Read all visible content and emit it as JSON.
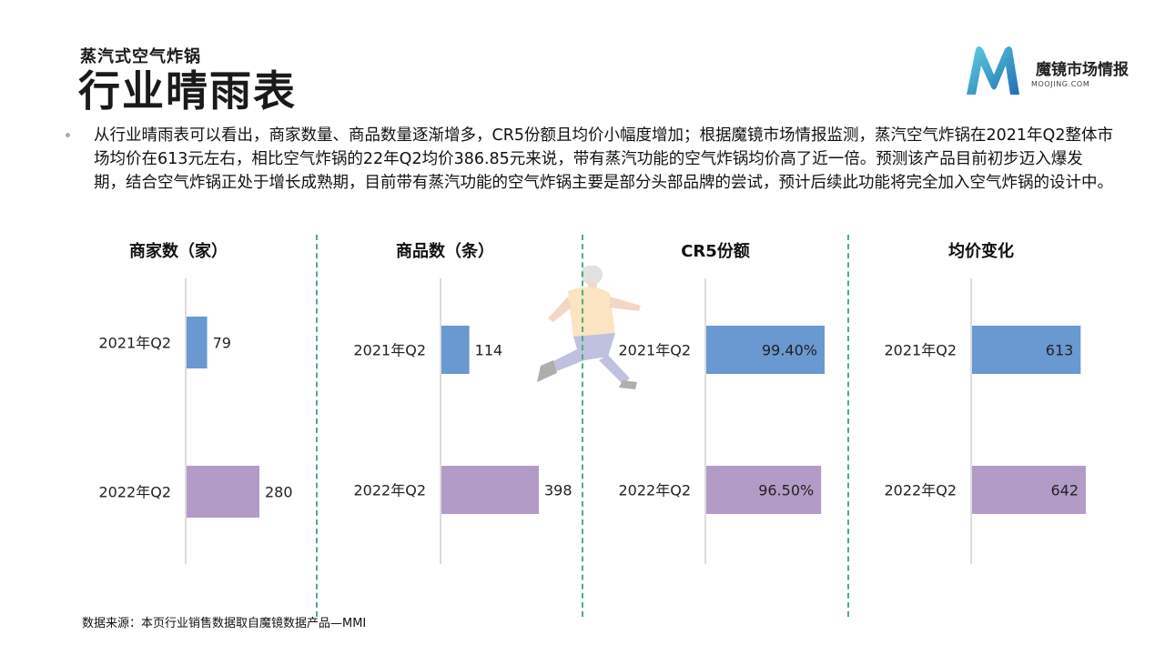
{
  "header": {
    "subtitle": "蒸汽式空气炸锅",
    "title": "行业晴雨表",
    "logo_text": "魔镜市场情报",
    "logo_domain": "MOOJING.COM"
  },
  "body_text": "从行业晴雨表可以看出，商家数量、商品数量逐渐增多，CR5份额且均价小幅度增加；根据魔镜市场情报监测，蒸汽空气炸锅在2021年Q2整体市场均价在613元左右，相比空气炸锅的22年Q2均价386.85元来说，带有蒸汽功能的空气炸锅均价高了近一倍。预测该产品目前初步迈入爆发期，结合空气炸锅正处于增长成熟期，目前带有蒸汽功能的空气炸锅主要是部分头部品牌的尝试，预计后续此功能将完全加入空气炸锅的设计中。",
  "source": "数据来源：本页行业销售数据取自魔镜数据产品—MMI",
  "colors": {
    "series_2021": "#6a98d0",
    "series_2022": "#b39bc8",
    "divider": "#4caf7d",
    "axis": "#d0d0d0"
  },
  "chart_data": [
    {
      "type": "bar",
      "title": "商家数（家）",
      "categories": [
        "2021年Q2",
        "2022年Q2"
      ],
      "values": [
        79,
        280
      ],
      "labels": [
        "79",
        "280"
      ],
      "label_position": "outside"
    },
    {
      "type": "bar",
      "title": "商品数（条）",
      "categories": [
        "2021年Q2",
        "2022年Q2"
      ],
      "values": [
        114,
        398
      ],
      "labels": [
        "114",
        "398"
      ],
      "label_position": "outside"
    },
    {
      "type": "bar",
      "title": "CR5份额",
      "categories": [
        "2021年Q2",
        "2022年Q2"
      ],
      "values": [
        99.4,
        96.5
      ],
      "labels": [
        "99.40%",
        "96.50%"
      ],
      "label_position": "inside"
    },
    {
      "type": "bar",
      "title": "均价变化",
      "categories": [
        "2021年Q2",
        "2022年Q2"
      ],
      "values": [
        613,
        642
      ],
      "labels": [
        "613",
        "642"
      ],
      "label_position": "inside"
    }
  ]
}
